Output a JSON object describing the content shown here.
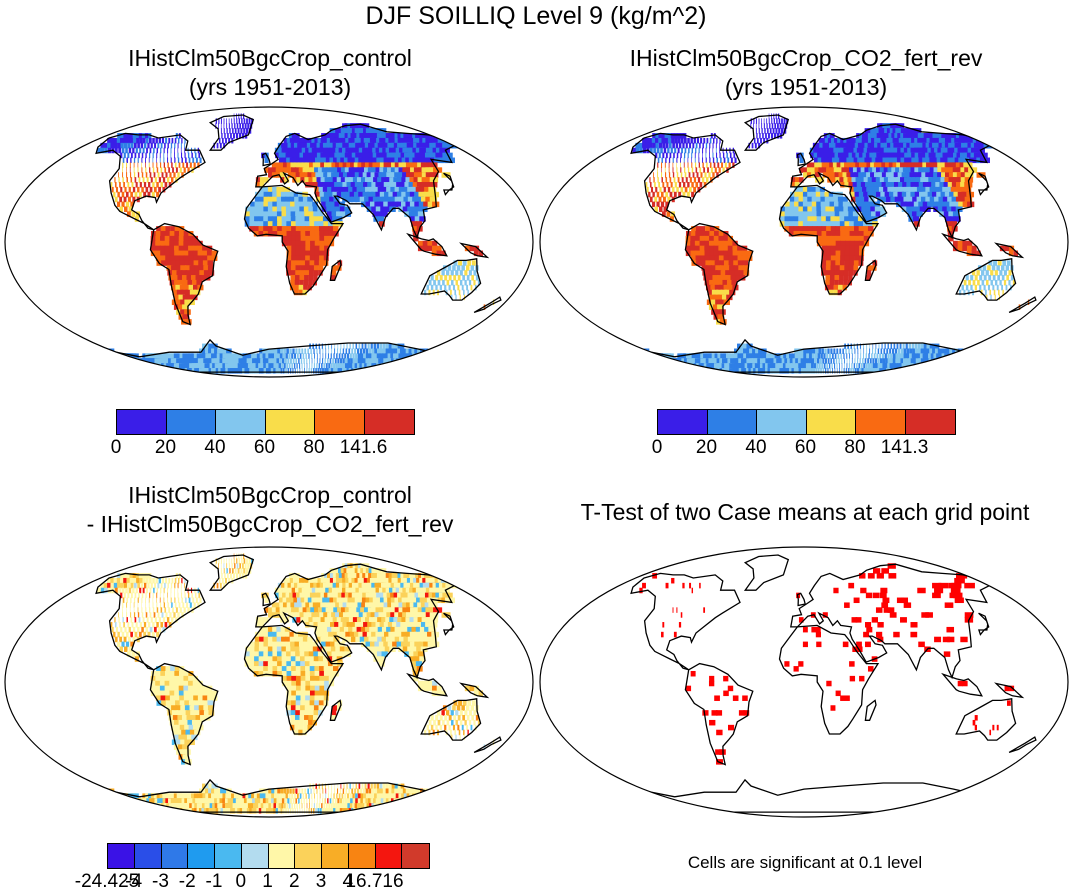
{
  "title": "DJF SOILLIQ Level 9 (kg/m^2)",
  "panels": [
    {
      "id": "control",
      "title_line1": "IHistClm50BgcCrop_control",
      "title_line2": "(yrs 1951-2013)",
      "colorbar": {
        "colors": [
          "#3a1ee8",
          "#2e7fe6",
          "#82c6ee",
          "#f9dd4a",
          "#f96a12",
          "#d62d26"
        ],
        "labels": [
          "0",
          "20",
          "40",
          "60",
          "80",
          "141.6"
        ]
      }
    },
    {
      "id": "co2",
      "title_line1": "IHistClm50BgcCrop_CO2_fert_rev",
      "title_line2": "(yrs 1951-2013)",
      "colorbar": {
        "colors": [
          "#3a1ee8",
          "#2e7fe6",
          "#82c6ee",
          "#f9dd4a",
          "#f96a12",
          "#d62d26"
        ],
        "labels": [
          "0",
          "20",
          "40",
          "60",
          "80",
          "141.3"
        ]
      }
    },
    {
      "id": "diff",
      "title_line1": "IHistClm50BgcCrop_control",
      "title_line2": "- IHistClm50BgcCrop_CO2_fert_rev",
      "colorbar": {
        "colors": [
          "#3a12e6",
          "#2a4ee8",
          "#2f79e8",
          "#1f9bef",
          "#4ab9f0",
          "#b3dcef",
          "#fff7a8",
          "#fbd25a",
          "#f8ad26",
          "#f88412",
          "#f4160f",
          "#d13a2b"
        ],
        "labels": [
          "-24.425",
          "-4",
          "-3",
          "-2",
          "-1",
          "0",
          "1",
          "2",
          "3",
          "4",
          "16.716"
        ]
      }
    },
    {
      "id": "ttest",
      "title_line1": "T-Test of two Case means at each grid point",
      "note": "Cells are significant at 0.1 level"
    }
  ],
  "map_colors": {
    "coast": "#000000",
    "ocean": "#ffffff",
    "significant": "#ff0000"
  }
}
